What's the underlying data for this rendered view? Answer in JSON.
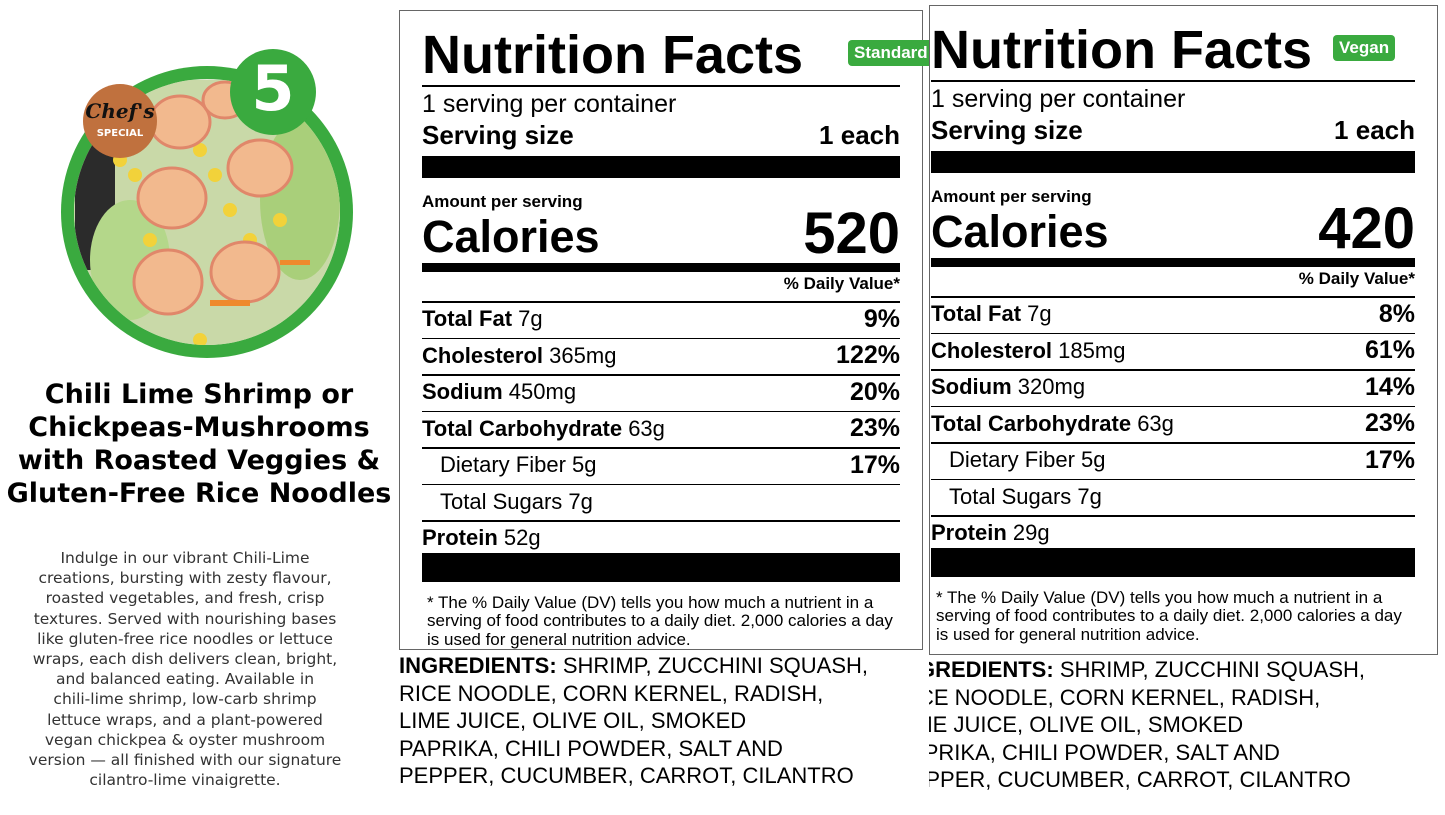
{
  "badge_number": "5",
  "chef_badge": {
    "line1": "Chef's",
    "line2": "SPECIAL"
  },
  "title_lines": [
    "Chili Lime Shrimp or",
    "Chickpeas-Mushrooms",
    "with Roasted Veggies &",
    "Gluten-Free Rice Noodles"
  ],
  "description_lines": [
    "Indulge in our vibrant Chili-Lime",
    "creations, bursting with zesty flavour,",
    "roasted vegetables, and fresh, crisp",
    "textures. Served with nourishing bases",
    "like gluten-free rice noodles or lettuce",
    "wraps, each dish delivers clean, bright,",
    "and balanced eating. Available in",
    "chili-lime shrimp, low-carb shrimp",
    "lettuce wraps, and a plant-powered",
    "vegan chickpea & oyster mushroom",
    "version — all finished with our signature",
    "cilantro-lime vinaigrette."
  ],
  "labels": [
    {
      "heading": "Nutrition Facts",
      "tag": "Standard",
      "servings": "1 serving per container",
      "serving_size_label": "Serving size",
      "serving_size": "1 each",
      "amount_per_serving": "Amount per serving",
      "calories_label": "Calories",
      "calories": 520,
      "daily_value_header": "% Daily Value*",
      "rows": [
        {
          "name": "Total Fat",
          "amount": "7g",
          "dv": "9%",
          "indent": false
        },
        {
          "name": "Cholesterol",
          "amount": "365mg",
          "dv": "122%",
          "indent": false
        },
        {
          "name": "Sodium",
          "amount": "450mg",
          "dv": "20%",
          "indent": false
        },
        {
          "name": "Total Carbohydrate",
          "amount": "63g",
          "dv": "23%",
          "indent": false
        },
        {
          "name": "Dietary Fiber",
          "amount": "5g",
          "dv": "17%",
          "indent": true
        },
        {
          "name": "Total Sugars",
          "amount": "7g",
          "indent": true
        },
        {
          "name": "Protein",
          "amount": "52g",
          "indent": false
        }
      ],
      "footnote": "* The % Daily Value (DV) tells you how much a nutrient in a serving of food contributes to a daily diet. 2,000 calories a day is used for general nutrition advice.",
      "ingredients_label": "INGREDIENTS:",
      "ingredients_lines": [
        "SHRIMP, ZUCCHINI SQUASH,",
        "RICE NOODLE, CORN KERNEL, RADISH,",
        "LIME JUICE, OLIVE OIL, SMOKED",
        "PAPRIKA, CHILI POWDER, SALT AND",
        "PEPPER, CUCUMBER, CARROT, CILANTRO"
      ]
    },
    {
      "heading": "Nutrition Facts",
      "tag": "Vegan",
      "servings": "1 serving per container",
      "serving_size_label": "Serving size",
      "serving_size": "1 each",
      "amount_per_serving": "Amount per serving",
      "calories_label": "Calories",
      "calories": 420,
      "daily_value_header": "% Daily Value*",
      "rows": [
        {
          "name": "Total Fat",
          "amount": "7g",
          "dv": "8%",
          "indent": false
        },
        {
          "name": "Cholesterol",
          "amount": "185mg",
          "dv": "61%",
          "indent": false
        },
        {
          "name": "Sodium",
          "amount": "320mg",
          "dv": "14%",
          "indent": false
        },
        {
          "name": "Total Carbohydrate",
          "amount": "63g",
          "dv": "23%",
          "indent": false
        },
        {
          "name": "Dietary Fiber",
          "amount": "5g",
          "dv": "17%",
          "indent": true
        },
        {
          "name": "Total Sugars",
          "amount": "7g",
          "indent": true
        },
        {
          "name": "Protein",
          "amount": "29g",
          "indent": false
        }
      ],
      "footnote": "* The % Daily Value (DV) tells you how much a nutrient in a serving of food contributes to a daily diet. 2,000 calories a day is used for general nutrition advice.",
      "ingredients_label": "INGREDIENTS:",
      "ingredients_lines": [
        "SHRIMP, ZUCCHINI SQUASH,",
        "RICE NOODLE, CORN KERNEL, RADISH,",
        "LIME JUICE, OLIVE OIL, SMOKED",
        "PAPRIKA, CHILI POWDER, SALT AND",
        "PEPPER, CUCUMBER, CARROT, CILANTRO"
      ]
    }
  ]
}
